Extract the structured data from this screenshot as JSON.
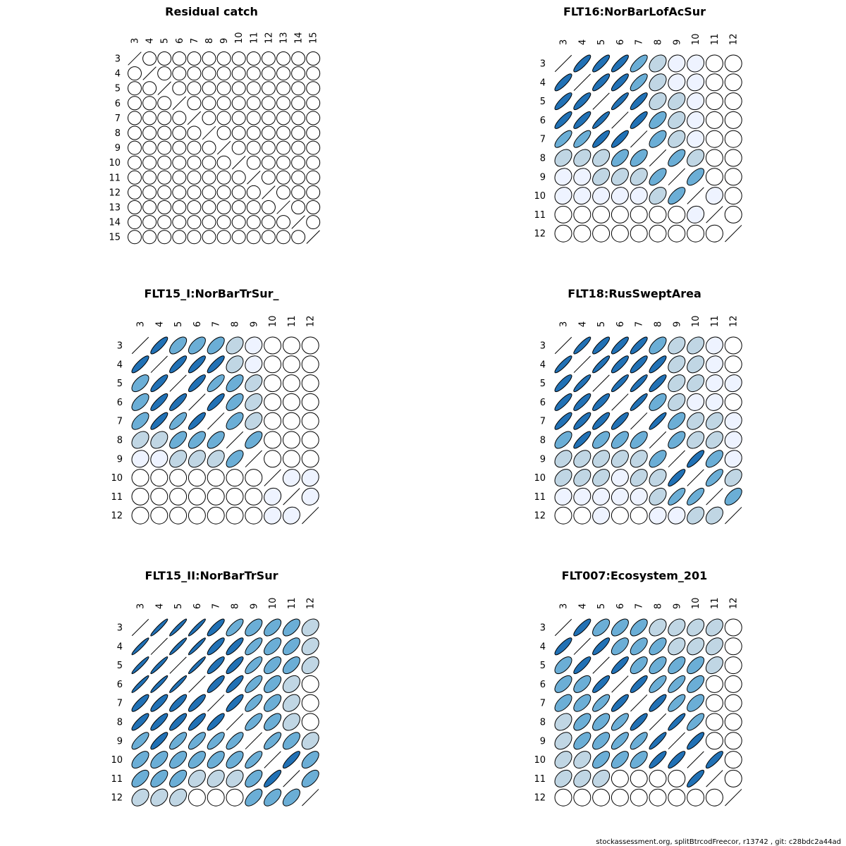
{
  "footer": "stockassessment.org, splitBtrcodFreecor, r13742 , git: c28bdc2a44ad",
  "palette": {
    "outline": "#000000",
    "fill_levels": [
      "#FFFFFF",
      "#EEF3FF",
      "#C0D6E4",
      "#6BAED6",
      "#2171B5"
    ]
  },
  "chart_data": [
    {
      "type": "correlation-ellipse-matrix",
      "title": "Residual catch",
      "ages": [
        "3",
        "4",
        "5",
        "6",
        "7",
        "8",
        "9",
        "10",
        "11",
        "12",
        "13",
        "14",
        "15"
      ],
      "default_correlation": 0.0
    },
    {
      "type": "correlation-ellipse-matrix",
      "title": "FLT16:NorBarLofAcSur",
      "ages": [
        "3",
        "4",
        "5",
        "6",
        "7",
        "8",
        "9",
        "10",
        "11",
        "12"
      ],
      "upper": [
        [
          0.85,
          0.85,
          0.85,
          0.75,
          0.35,
          0.1,
          0.1,
          0,
          0
        ],
        [
          0.85,
          0.85,
          0.75,
          0.35,
          0.1,
          0.1,
          0,
          0
        ],
        [
          0.9,
          0.85,
          0.35,
          0.35,
          0.1,
          0,
          0
        ],
        [
          0.85,
          0.6,
          0.35,
          0.1,
          0,
          0
        ],
        [
          0.6,
          0.35,
          0.1,
          0,
          0
        ],
        [
          0.65,
          0.35,
          0,
          0
        ],
        [
          0.65,
          0,
          0
        ],
        [
          0.1,
          0
        ],
        [
          0
        ]
      ]
    },
    {
      "type": "correlation-ellipse-matrix",
      "title": "FLT15_I:NorBarTrSur_",
      "ages": [
        "3",
        "4",
        "5",
        "6",
        "7",
        "8",
        "9",
        "10",
        "11",
        "12"
      ],
      "upper": [
        [
          0.85,
          0.6,
          0.6,
          0.6,
          0.35,
          0.1,
          0,
          0,
          0
        ],
        [
          0.85,
          0.85,
          0.85,
          0.35,
          0.1,
          0,
          0,
          0
        ],
        [
          0.85,
          0.75,
          0.6,
          0.35,
          0,
          0,
          0
        ],
        [
          0.85,
          0.6,
          0.35,
          0,
          0,
          0
        ],
        [
          0.6,
          0.35,
          0,
          0,
          0
        ],
        [
          0.6,
          0,
          0,
          0
        ],
        [
          0,
          0,
          0
        ],
        [
          0.1,
          0.1
        ],
        [
          0.1
        ]
      ]
    },
    {
      "type": "correlation-ellipse-matrix",
      "title": "FLT18:RusSweptArea",
      "ages": [
        "3",
        "4",
        "5",
        "6",
        "7",
        "8",
        "9",
        "10",
        "11",
        "12"
      ],
      "upper": [
        [
          0.9,
          0.85,
          0.85,
          0.85,
          0.6,
          0.35,
          0.35,
          0.1,
          0
        ],
        [
          0.9,
          0.85,
          0.85,
          0.85,
          0.35,
          0.35,
          0.1,
          0
        ],
        [
          0.9,
          0.9,
          0.85,
          0.35,
          0.35,
          0.1,
          0.1
        ],
        [
          0.9,
          0.6,
          0.35,
          0.1,
          0.1
        ],
        [
          0.9,
          0.6,
          0.35,
          0.35,
          0.1
        ],
        [
          0.6,
          0.35,
          0.35,
          0.1
        ],
        [
          0.85,
          0.6,
          0.1
        ],
        [
          0.75,
          0.35
        ],
        [
          0.6
        ]
      ],
      "lower": [
        [
          0.9,
          0.85,
          0.85,
          0.85,
          0.6,
          0.35,
          0.35,
          0.1,
          0
        ],
        [
          0.9,
          0.85,
          0.85,
          0.85,
          0.35,
          0.35,
          0.1,
          0
        ],
        [
          0.85,
          0.85,
          0.6,
          0.35,
          0.35,
          0.1,
          0.1
        ],
        [
          0.85,
          0.6,
          0.35,
          0.1,
          0.1
        ],
        [
          0.6,
          0.35,
          0.35,
          0.1
        ],
        [
          0.6,
          0.35,
          0.35,
          0.1
        ],
        [
          0.85,
          0.75,
          0.1
        ],
        [
          0.75,
          0.35
        ],
        [
          0.35
        ]
      ]
    },
    {
      "type": "correlation-ellipse-matrix",
      "title": "FLT15_II:NorBarTrSur",
      "ages": [
        "3",
        "4",
        "5",
        "6",
        "7",
        "8",
        "9",
        "10",
        "11",
        "12"
      ],
      "upper": [
        [
          0.95,
          0.95,
          0.95,
          0.85,
          0.75,
          0.6,
          0.6,
          0.6,
          0.35
        ],
        [
          0.95,
          0.95,
          0.85,
          0.85,
          0.75,
          0.6,
          0.6,
          0.35
        ],
        [
          0.95,
          0.85,
          0.85,
          0.75,
          0.6,
          0.6,
          0.35
        ],
        [
          0.85,
          0.85,
          0.75,
          0.6,
          0.35
        ],
        [
          0.85,
          0.75,
          0.6,
          0.35
        ],
        [
          0.75,
          0.6,
          0.35
        ],
        [
          0.75,
          0.6,
          0.35
        ],
        [
          0.85,
          0.6
        ],
        [
          0.6
        ]
      ],
      "lower": [
        [
          0.95,
          0.95,
          0.95,
          0.85,
          0.85,
          0.75,
          0.6,
          0.6,
          0.35
        ],
        [
          0.95,
          0.95,
          0.85,
          0.85,
          0.85,
          0.6,
          0.6,
          0.35
        ],
        [
          0.95,
          0.85,
          0.85,
          0.75,
          0.6,
          0.6,
          0.35
        ],
        [
          0.85,
          0.85,
          0.75,
          0.6,
          0.35
        ],
        [
          0.85,
          0.75,
          0.6,
          0.35
        ],
        [
          0.75,
          0.6,
          0.35
        ],
        [
          0.75,
          0.6,
          0.6
        ],
        [
          0.85,
          0.6
        ],
        [
          0.6
        ]
      ]
    },
    {
      "type": "correlation-ellipse-matrix",
      "title": "FLT007:Ecosystem_201",
      "ages": [
        "3",
        "4",
        "5",
        "6",
        "7",
        "8",
        "9",
        "10",
        "11",
        "12"
      ],
      "upper": [
        [
          0.85,
          0.6,
          0.6,
          0.6,
          0.35,
          0.35,
          0.35,
          0.35,
          0
        ],
        [
          0.85,
          0.6,
          0.6,
          0.6,
          0.35,
          0.35,
          0.35,
          0
        ],
        [
          0.85,
          0.6,
          0.6,
          0.6,
          0.6,
          0.35,
          0
        ],
        [
          0.85,
          0.75,
          0.75,
          0.6,
          0
        ],
        [
          0.85,
          0.75,
          0.6,
          0
        ],
        [
          0.9,
          0.75,
          0
        ],
        [
          0.85,
          0
        ],
        [
          0.85,
          0
        ],
        [
          0
        ]
      ],
      "lower": [
        [
          0.85,
          0.6,
          0.6,
          0.6,
          0.35,
          0.35,
          0.35,
          0.35,
          0
        ],
        [
          0.85,
          0.6,
          0.6,
          0.6,
          0.6,
          0.35,
          0.35,
          0
        ],
        [
          0.85,
          0.75,
          0.6,
          0.6,
          0.6,
          0.35,
          0
        ],
        [
          0.85,
          0.75,
          0.75,
          0.6,
          0
        ],
        [
          0.85,
          0.75,
          0.6,
          0
        ],
        [
          0.9,
          0.85,
          0
        ],
        [
          0.85,
          0
        ],
        [
          0.85,
          0
        ],
        [
          0
        ]
      ]
    }
  ]
}
